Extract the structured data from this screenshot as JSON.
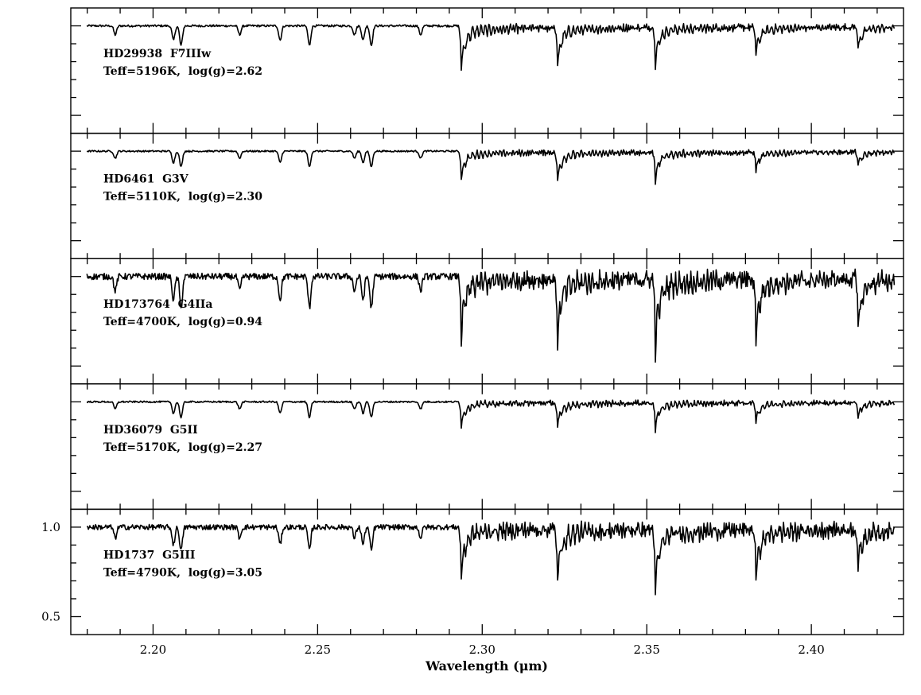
{
  "chart_data": {
    "type": "line",
    "xlabel": "Wavelength (μm)",
    "xlim": [
      2.175,
      2.428
    ],
    "x_ticks": [
      "2.20",
      "2.25",
      "2.30",
      "2.35",
      "2.40"
    ],
    "panel_ylim": [
      0.4,
      1.1
    ],
    "y_ticks": [
      "0.5",
      "1.0"
    ],
    "grid": false,
    "band_heads": [
      2.2935,
      2.3227,
      2.3525,
      2.383,
      2.414
    ],
    "atomic_lines": [
      2.1885,
      2.2062,
      2.2085,
      2.2263,
      2.2386,
      2.2475,
      2.2612,
      2.2638,
      2.2663,
      2.2813
    ],
    "panels": [
      {
        "name": "HD29938  F7IIIw",
        "params": "Teff=5196K,  log(g)=2.62",
        "continuum": 1.0,
        "atomic_depth": 0.05,
        "co_depth": [
          0.22,
          0.2,
          0.18,
          0.15,
          0.12
        ],
        "noise": 0.02
      },
      {
        "name": "HD6461  G3V",
        "params": "Teff=5110K,  log(g)=2.30",
        "continuum": 1.0,
        "atomic_depth": 0.04,
        "co_depth": [
          0.14,
          0.15,
          0.14,
          0.1,
          0.08
        ],
        "noise": 0.015
      },
      {
        "name": "HD173764  G4IIa",
        "params": "Teff=4700K,  log(g)=0.94",
        "continuum": 1.0,
        "atomic_depth": 0.08,
        "co_depth": [
          0.31,
          0.33,
          0.35,
          0.32,
          0.28
        ],
        "noise": 0.06
      },
      {
        "name": "HD36079  G5II",
        "params": "Teff=5170K,  log(g)=2.27",
        "continuum": 1.0,
        "atomic_depth": 0.04,
        "co_depth": [
          0.12,
          0.13,
          0.13,
          0.1,
          0.08
        ],
        "noise": 0.015
      },
      {
        "name": "HD1737  G5III",
        "params": "Teff=4790K,  log(g)=3.05",
        "continuum": 1.0,
        "atomic_depth": 0.06,
        "co_depth": [
          0.25,
          0.27,
          0.32,
          0.27,
          0.22
        ],
        "noise": 0.05
      }
    ]
  }
}
